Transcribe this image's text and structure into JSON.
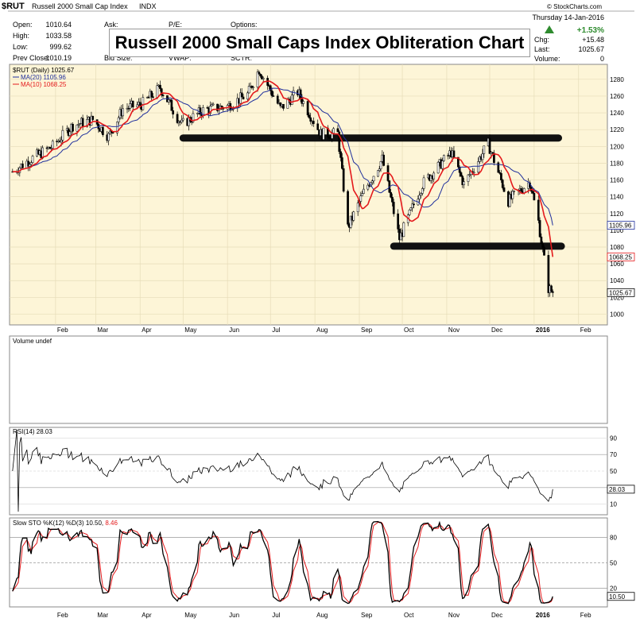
{
  "header": {
    "symbol": "$RUT",
    "name": "Russell 2000 Small Cap Index",
    "exchange": "INDX",
    "source": "© StockCharts.com",
    "date_line": "Thursday 14-Jan-2016",
    "change_pct": "+1.53%",
    "chg_label": "Chg:",
    "chg_value": "+15.48",
    "last_label": "Last:",
    "last_value": "1025.67",
    "volume_label": "Volume:",
    "volume_value": "0",
    "open_label": "Open:",
    "open_value": "1010.64",
    "high_label": "High:",
    "high_value": "1033.58",
    "low_label": "Low:",
    "low_value": "999.62",
    "prev_label": "Prev Close:",
    "prev_value": "1010.19",
    "ask_label": "Ask:",
    "pe_label": "P/E:",
    "options_label": "Options:",
    "bid_size_label": "Bid Size:",
    "vwap_label": "VWAP:",
    "sctr_label": "SCTR:",
    "colors": {
      "up": "#2e8b2e",
      "ma20": "#1f2f9c",
      "ma10": "#e41a1c",
      "panel_bg": "#fdf5d7"
    }
  },
  "overlay_title": "Russell 2000 Small Caps Index Obliteration Chart",
  "price_panel": {
    "legend_main": "$RUT (Daily) 1025.67",
    "legend_ma20": "MA(20) 1105.96",
    "legend_ma10": "MA(10) 1068.25",
    "tag_ma20": "1105.96",
    "tag_ma10": "1068.25",
    "tag_last": "1025.67"
  },
  "volume_panel": {
    "label": "Volume undef"
  },
  "rsi_panel": {
    "label": "RSI(14) 28.03",
    "tag": "28.03",
    "y_ticks": [
      "90",
      "70",
      "50",
      "30",
      "10"
    ]
  },
  "sto_panel": {
    "label_prefix": "Slow STO %K(12) %D(3) 10.50,",
    "label_suffix": "8.46",
    "tag": "10.50",
    "y_ticks": [
      "80",
      "50",
      "20"
    ]
  },
  "chart_data": {
    "type": "line",
    "x_months": [
      "Feb",
      "Mar",
      "Apr",
      "May",
      "Jun",
      "Jul",
      "Aug",
      "Sep",
      "Oct",
      "Nov",
      "Dec",
      "2016",
      "Feb"
    ],
    "ylim": [
      990,
      1295
    ],
    "y_ticks": [
      1000,
      1020,
      1040,
      1060,
      1080,
      1100,
      1120,
      1140,
      1160,
      1180,
      1200,
      1220,
      1240,
      1260,
      1280
    ],
    "grid": true,
    "support_lines": [
      {
        "x_start": "2015-05-01",
        "x_end": "2016-01-18",
        "y": 1210
      },
      {
        "x_start": "2015-09-25",
        "x_end": "2016-01-20",
        "y": 1081
      }
    ],
    "close_anchors": [
      {
        "x": "2015-01-02",
        "y": 1170
      },
      {
        "x": "2015-01-15",
        "y": 1185
      },
      {
        "x": "2015-01-30",
        "y": 1200
      },
      {
        "x": "2015-02-13",
        "y": 1225
      },
      {
        "x": "2015-02-27",
        "y": 1232
      },
      {
        "x": "2015-03-10",
        "y": 1212
      },
      {
        "x": "2015-03-20",
        "y": 1245
      },
      {
        "x": "2015-04-02",
        "y": 1250
      },
      {
        "x": "2015-04-15",
        "y": 1270
      },
      {
        "x": "2015-04-30",
        "y": 1226
      },
      {
        "x": "2015-05-15",
        "y": 1243
      },
      {
        "x": "2015-06-01",
        "y": 1248
      },
      {
        "x": "2015-06-15",
        "y": 1262
      },
      {
        "x": "2015-06-23",
        "y": 1292
      },
      {
        "x": "2015-07-08",
        "y": 1245
      },
      {
        "x": "2015-07-20",
        "y": 1265
      },
      {
        "x": "2015-08-05",
        "y": 1215
      },
      {
        "x": "2015-08-17",
        "y": 1215
      },
      {
        "x": "2015-08-24",
        "y": 1103
      },
      {
        "x": "2015-09-04",
        "y": 1145
      },
      {
        "x": "2015-09-17",
        "y": 1185
      },
      {
        "x": "2015-09-29",
        "y": 1090
      },
      {
        "x": "2015-10-15",
        "y": 1155
      },
      {
        "x": "2015-11-04",
        "y": 1193
      },
      {
        "x": "2015-11-13",
        "y": 1155
      },
      {
        "x": "2015-11-30",
        "y": 1203
      },
      {
        "x": "2015-12-14",
        "y": 1135
      },
      {
        "x": "2015-12-29",
        "y": 1158
      },
      {
        "x": "2016-01-04",
        "y": 1110
      },
      {
        "x": "2016-01-11",
        "y": 1031
      },
      {
        "x": "2016-01-14",
        "y": 1025.67
      }
    ],
    "ma20_last": 1105.96,
    "ma10_last": 1068.25,
    "rsi_last": 28.03,
    "sto_k_last": 10.5,
    "sto_d_last": 8.46
  }
}
